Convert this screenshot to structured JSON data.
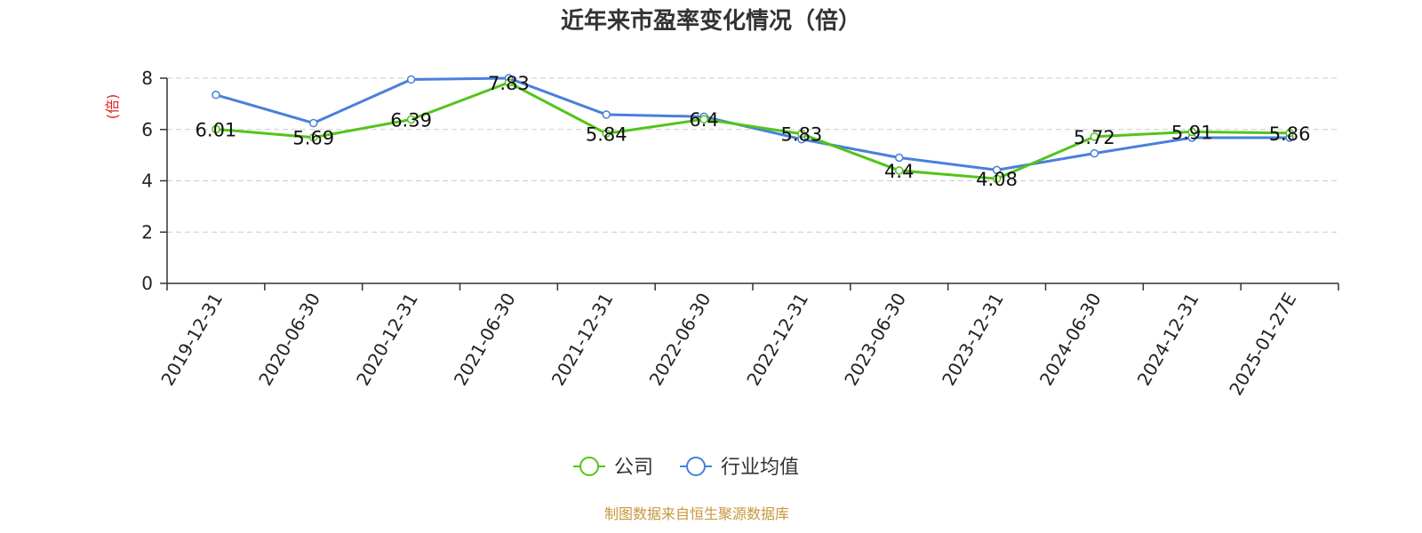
{
  "chart_data": {
    "type": "line",
    "title": "近年来市盈率变化情况（倍）",
    "ylabel": "(倍)",
    "xlabel": "",
    "categories": [
      "2019-12-31",
      "2020-06-30",
      "2020-12-31",
      "2021-06-30",
      "2021-12-31",
      "2022-06-30",
      "2022-12-31",
      "2023-06-30",
      "2023-12-31",
      "2024-06-30",
      "2024-12-31",
      "2025-01-27E"
    ],
    "ylim": [
      0,
      8
    ],
    "yticks": [
      "0",
      "2",
      "4",
      "6",
      "8"
    ],
    "grid": true,
    "legend_position": "bottom-center",
    "series": [
      {
        "name": "公司",
        "color": "#52c41a",
        "values": [
          6.01,
          5.69,
          6.39,
          7.83,
          5.84,
          6.4,
          5.83,
          4.4,
          4.08,
          5.72,
          5.91,
          5.86
        ],
        "labels": [
          "6.01",
          "5.69",
          "6.39",
          "7.83",
          "5.84",
          "6.4",
          "5.83",
          "4.4",
          "4.08",
          "5.72",
          "5.91",
          "5.86"
        ]
      },
      {
        "name": "行业均值",
        "color": "#4a7fdb",
        "values": [
          7.35,
          6.25,
          7.95,
          8.0,
          6.58,
          6.5,
          5.62,
          4.9,
          4.42,
          5.07,
          5.68,
          5.68
        ]
      }
    ],
    "source": "制图数据来自恒生聚源数据库",
    "colors": {
      "ylabel": "#e02020",
      "source": "#c8963e",
      "grid": "#cccccc",
      "axis": "#333333"
    }
  }
}
